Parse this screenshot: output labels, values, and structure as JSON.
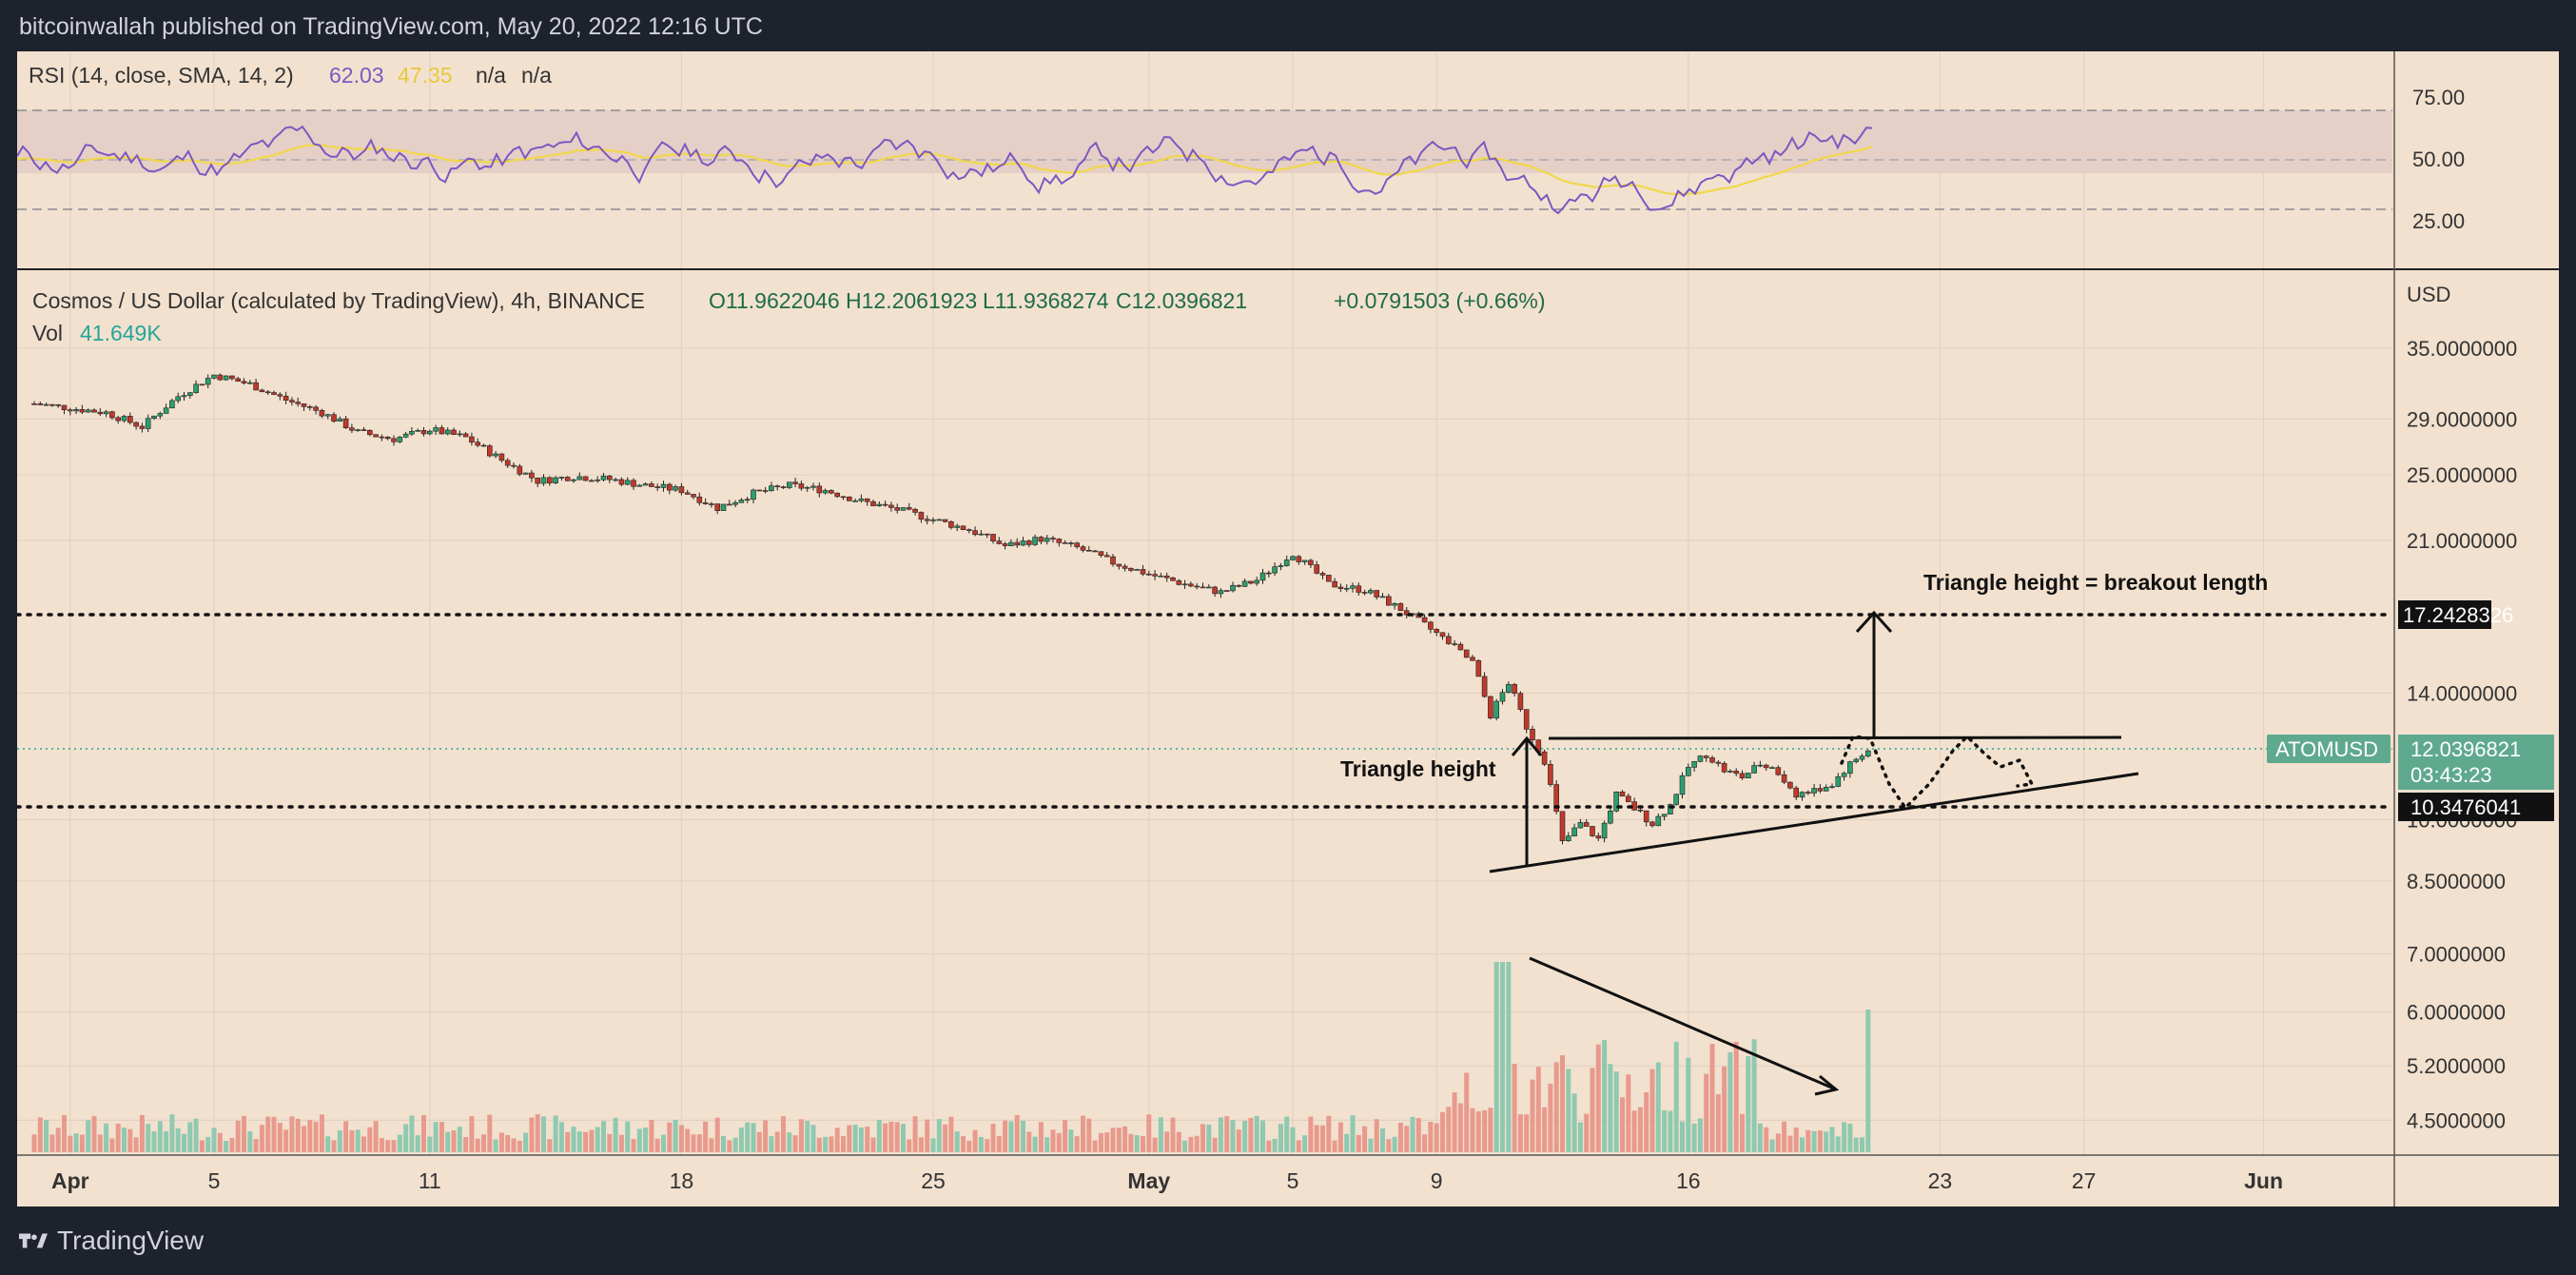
{
  "header": {
    "publisher": "bitcoinwallah published on TradingView.com, May 20, 2022 12:16 UTC"
  },
  "footer": {
    "brand": "TradingView",
    "logo_icon": "tradingview-logo-icon"
  },
  "rsi": {
    "name": "RSI (14, close, SMA, 14, 2)",
    "rsi_value": "62.03",
    "sma_value": "47.35",
    "na1": "n/a",
    "na2": "n/a",
    "ticks": [
      "75.00",
      "50.00",
      "25.00"
    ],
    "band": [
      30,
      70
    ],
    "midline": 50,
    "colors": {
      "rsi": "#7e57c2",
      "sma": "#f0d84a",
      "band": "#e2cfc6"
    }
  },
  "legend": {
    "title": "Cosmos / US Dollar (calculated by TradingView), 4h, BINANCE",
    "open": "O11.9622046",
    "high": "H12.2061923",
    "low": "L11.9368274",
    "close": "C12.0396821",
    "change": "+0.0791503 (+0.66%)",
    "vol_label": "Vol",
    "vol_value": "41.649K"
  },
  "price_axis": {
    "currency": "USD",
    "ticks": [
      "35.0000000",
      "29.0000000",
      "25.0000000",
      "21.0000000",
      "14.0000000",
      "10.0000000",
      "8.5000000",
      "7.0000000",
      "6.0000000",
      "5.2000000",
      "4.5000000"
    ]
  },
  "badges": {
    "resistance_level": "17.2428326",
    "symbol": "ATOMUSD",
    "last_price": "12.0396821",
    "countdown": "03:43:23",
    "support_level": "10.3476041"
  },
  "annotations": {
    "breakout_label": "Triangle height = breakout length",
    "triangle_label": "Triangle height"
  },
  "time_axis": {
    "labels": [
      {
        "text": "Apr",
        "day": 1,
        "bold": true
      },
      {
        "text": "5",
        "day": 5,
        "bold": false
      },
      {
        "text": "11",
        "day": 11,
        "bold": false
      },
      {
        "text": "18",
        "day": 18,
        "bold": false
      },
      {
        "text": "25",
        "day": 25,
        "bold": false
      },
      {
        "text": "May",
        "day": 31,
        "bold": true
      },
      {
        "text": "5",
        "day": 35,
        "bold": false
      },
      {
        "text": "9",
        "day": 39,
        "bold": false
      },
      {
        "text": "16",
        "day": 46,
        "bold": false
      },
      {
        "text": "23",
        "day": 53,
        "bold": false
      },
      {
        "text": "27",
        "day": 57,
        "bold": false
      },
      {
        "text": "Jun",
        "day": 62,
        "bold": true
      }
    ]
  },
  "chart_data": {
    "type": "candlestick",
    "symbol": "ATOMUSD",
    "interval": "4h",
    "x_unit": "days since Mar 31, 2022",
    "price_series": [
      [
        0,
        30.2
      ],
      [
        2,
        29.5
      ],
      [
        3,
        28.4
      ],
      [
        4,
        30.8
      ],
      [
        5,
        32.6
      ],
      [
        6,
        31.8
      ],
      [
        7,
        30.5
      ],
      [
        8,
        29.5
      ],
      [
        9,
        28.0
      ],
      [
        10,
        27.5
      ],
      [
        11,
        28.2
      ],
      [
        12,
        27.6
      ],
      [
        13,
        26.0
      ],
      [
        14,
        24.6
      ],
      [
        15,
        24.9
      ],
      [
        16,
        24.7
      ],
      [
        17,
        24.3
      ],
      [
        18,
        24.0
      ],
      [
        19,
        22.9
      ],
      [
        20,
        23.8
      ],
      [
        21,
        24.3
      ],
      [
        22,
        24.0
      ],
      [
        23,
        23.3
      ],
      [
        24,
        22.8
      ],
      [
        25,
        22.2
      ],
      [
        26,
        21.6
      ],
      [
        27,
        20.7
      ],
      [
        28,
        21.1
      ],
      [
        29,
        20.6
      ],
      [
        30,
        19.8
      ],
      [
        31,
        19.2
      ],
      [
        32,
        18.7
      ],
      [
        33,
        18.3
      ],
      [
        34,
        18.9
      ],
      [
        35,
        20.3
      ],
      [
        36,
        18.7
      ],
      [
        37,
        18.4
      ],
      [
        38,
        17.5
      ],
      [
        39,
        16.4
      ],
      [
        40,
        15.2
      ],
      [
        40.5,
        13.2
      ],
      [
        41,
        14.4
      ],
      [
        41.5,
        12.8
      ],
      [
        42,
        11.7
      ],
      [
        42.5,
        9.4
      ],
      [
        43,
        9.9
      ],
      [
        43.5,
        9.5
      ],
      [
        44,
        10.7
      ],
      [
        44.5,
        10.3
      ],
      [
        45,
        9.9
      ],
      [
        45.5,
        10.4
      ],
      [
        46,
        11.5
      ],
      [
        46.5,
        11.9
      ],
      [
        47,
        11.4
      ],
      [
        47.5,
        11.2
      ],
      [
        48,
        11.6
      ],
      [
        48.5,
        11.3
      ],
      [
        49,
        10.7
      ],
      [
        49.5,
        10.8
      ],
      [
        50,
        11.0
      ],
      [
        50.5,
        11.6
      ],
      [
        51,
        12.04
      ]
    ],
    "volume_ratio": 0.85,
    "levels": {
      "resistance": 17.2428326,
      "support": 10.3476041,
      "last": 12.0396821
    },
    "triangle": {
      "top": 12.35,
      "apex_day": 57
    }
  }
}
